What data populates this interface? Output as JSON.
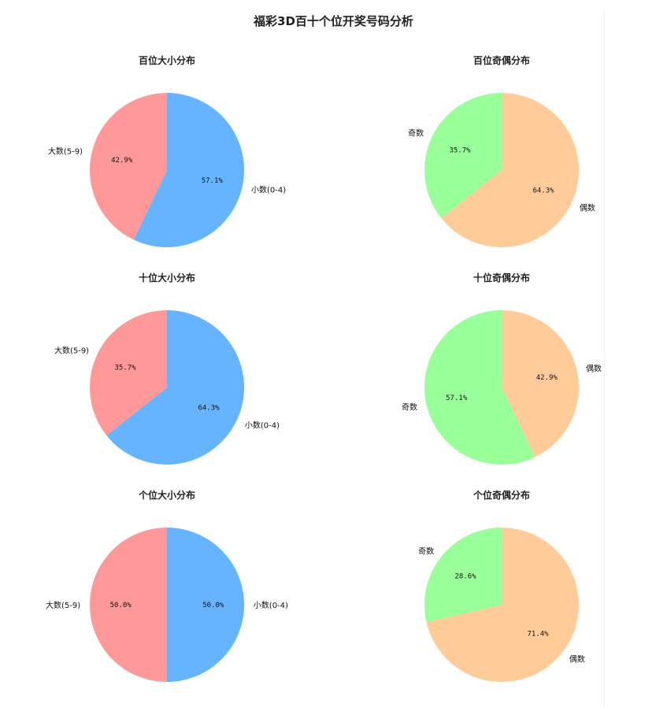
{
  "title": "福彩3D百十个位开奖号码分析",
  "colors": {
    "small": "#66b3ff",
    "big": "#ff9999",
    "odd": "#99ff99",
    "even": "#ffcc99"
  },
  "chart_data": [
    {
      "type": "pie",
      "title": "百位大小分布",
      "slices": [
        {
          "label": "小数(0-4)",
          "value": 57.1,
          "pct_label": "57.1%",
          "color_key": "small"
        },
        {
          "label": "大数(5-9)",
          "value": 42.9,
          "pct_label": "42.9%",
          "color_key": "big"
        }
      ]
    },
    {
      "type": "pie",
      "title": "百位奇偶分布",
      "slices": [
        {
          "label": "偶数",
          "value": 64.3,
          "pct_label": "64.3%",
          "color_key": "even"
        },
        {
          "label": "奇数",
          "value": 35.7,
          "pct_label": "35.7%",
          "color_key": "odd"
        }
      ]
    },
    {
      "type": "pie",
      "title": "十位大小分布",
      "slices": [
        {
          "label": "小数(0-4)",
          "value": 64.3,
          "pct_label": "64.3%",
          "color_key": "small"
        },
        {
          "label": "大数(5-9)",
          "value": 35.7,
          "pct_label": "35.7%",
          "color_key": "big"
        }
      ]
    },
    {
      "type": "pie",
      "title": "十位奇偶分布",
      "slices": [
        {
          "label": "偶数",
          "value": 42.9,
          "pct_label": "42.9%",
          "color_key": "even"
        },
        {
          "label": "奇数",
          "value": 57.1,
          "pct_label": "57.1%",
          "color_key": "odd"
        }
      ]
    },
    {
      "type": "pie",
      "title": "个位大小分布",
      "slices": [
        {
          "label": "小数(0-4)",
          "value": 50.0,
          "pct_label": "50.0%",
          "color_key": "small"
        },
        {
          "label": "大数(5-9)",
          "value": 50.0,
          "pct_label": "50.0%",
          "color_key": "big"
        }
      ]
    },
    {
      "type": "pie",
      "title": "个位奇偶分布",
      "slices": [
        {
          "label": "偶数",
          "value": 71.4,
          "pct_label": "71.4%",
          "color_key": "even"
        },
        {
          "label": "奇数",
          "value": 28.6,
          "pct_label": "28.6%",
          "color_key": "odd"
        }
      ]
    }
  ]
}
